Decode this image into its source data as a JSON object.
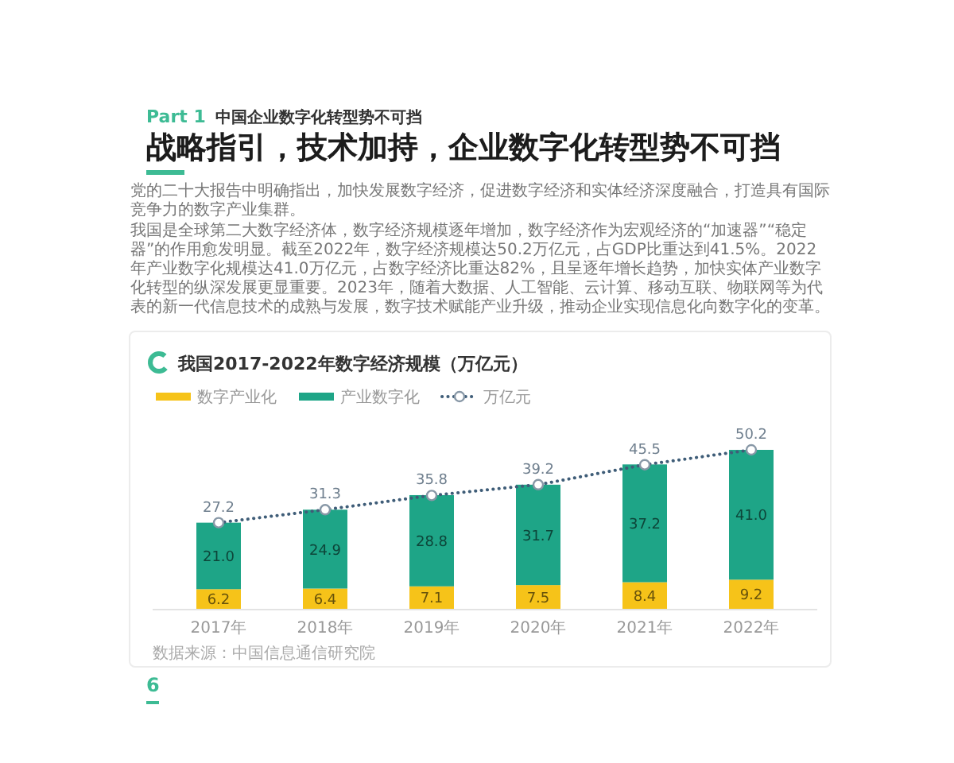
{
  "chart_data": {
    "type": "bar",
    "title": "我国2017-2022年数字经济规模（万亿元）",
    "categories": [
      "2017年",
      "2018年",
      "2019年",
      "2020年",
      "2021年",
      "2022年"
    ],
    "stacked": true,
    "series": [
      {
        "name": "数字产业化",
        "color": "#f6c319",
        "values": [
          6.2,
          6.4,
          7.1,
          7.5,
          8.4,
          9.2
        ],
        "value_labels": [
          "6.2",
          "6.4",
          "7.1",
          "7.5",
          "8.4",
          "9.2"
        ]
      },
      {
        "name": "产业数字化",
        "color": "#1ea587",
        "values": [
          21.0,
          24.9,
          28.8,
          31.7,
          37.2,
          41.0
        ],
        "value_labels": [
          "21.0",
          "24.9",
          "28.8",
          "31.7",
          "37.2",
          "41.0"
        ]
      },
      {
        "name": "万亿元",
        "type": "line",
        "color": "#3f5d78",
        "values": [
          27.2,
          31.3,
          35.8,
          39.2,
          45.5,
          50.2
        ],
        "value_labels": [
          "27.2",
          "31.3",
          "35.8",
          "39.2",
          "45.5",
          "50.2"
        ]
      }
    ],
    "legend": "top left",
    "marker": "circle",
    "line_style": "dotted",
    "annotations": [
      "Part 1",
      "中国企业数字化转型势不可挡",
      "战略指引，技术加持，企业数字化转型势不可挡",
      "党的二十大报告中明确指出，加快发展数字经济，促进数字经济和实体经济深度融合，打造具有国际竞争力的数字产业集群。",
      "我国是全球第二大数字经济体，数字经济规模逐年增加，数字经济作为宏观经济的“加速器”“稳定器”的作用愈发明显。截至2022年，数字经济规模达50.2万亿元，占GDP比重达到41.5%。2022年产业数字化规模达41.0万亿元，占数字经济比重达82%，且呈逐年增长趋势，加快实体产业数字化转型的纵深发展更显重要。2023年，随着大数据、人工智能、云计算、移动互联、物联网等为代表的新一代信息技术的成熟与发展，数字技术赋能产业升级，推动企业实现信息化向数字化的变革。",
      "数据来源：中国信息通信研究院",
      "6"
    ]
  }
}
